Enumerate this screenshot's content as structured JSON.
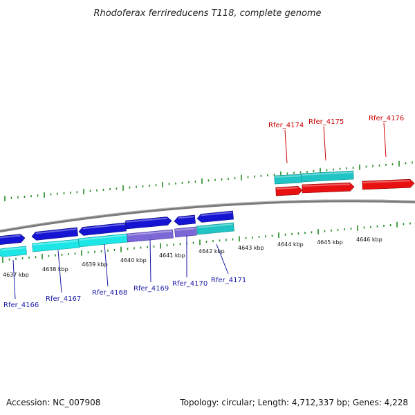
{
  "title": "Rhodoferax ferrireducens T118, complete genome",
  "footer": {
    "accession": "Accession: NC_007908",
    "summary": "Topology: circular; Length: 4,712,337 bp; Genes: 4,228"
  },
  "colors": {
    "dark_blue": "#1414d2",
    "cyan": "#1ee6e6",
    "purple": "#7b68d6",
    "teal": "#20c4c4",
    "red": "#e81010",
    "tick_green": "#228b22",
    "backbone": "#7a7a7a",
    "label_blue": "#1a1aa8",
    "label_red": "#cc0000"
  },
  "position_labels": [
    "4637 kbp",
    "4638 kbp",
    "4639 kbp",
    "4640 kbp",
    "4641 kbp",
    "4642 kbp",
    "4643 kbp",
    "4644 kbp",
    "4645 kbp",
    "4646 kbp"
  ],
  "gene_labels": [
    {
      "name": "Rfer_4166",
      "color": "blue"
    },
    {
      "name": "Rfer_4167",
      "color": "blue"
    },
    {
      "name": "Rfer_4168",
      "color": "blue"
    },
    {
      "name": "Rfer_4169",
      "color": "blue"
    },
    {
      "name": "Rfer_4170",
      "color": "blue"
    },
    {
      "name": "Rfer_4171",
      "color": "blue"
    },
    {
      "name": "Rfer_4174",
      "color": "red"
    },
    {
      "name": "Rfer_4175",
      "color": "red"
    },
    {
      "name": "Rfer_4176",
      "color": "red"
    }
  ]
}
